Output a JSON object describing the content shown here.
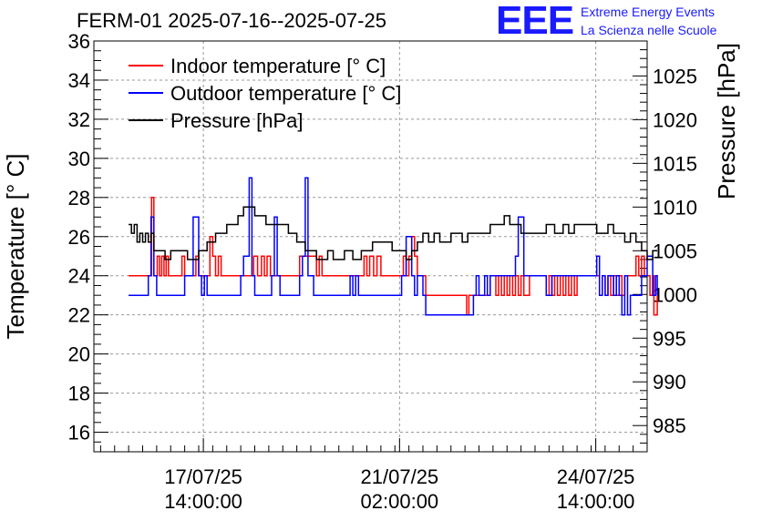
{
  "header": {
    "title": "FERM-01 2025-07-16--2025-07-25",
    "logo_text": "EEE",
    "logo_line1": "Extreme Energy Events",
    "logo_line2": "La Scienza nelle Scuole",
    "logo_color": "#1a1aff"
  },
  "chart_data": {
    "type": "line",
    "title": "FERM-01 2025-07-16--2025-07-25",
    "ylabel": "Temperature [° C]",
    "ylabel_right": "Pressure [hPa]",
    "ylim": [
      15,
      36
    ],
    "ylim_right": [
      982,
      1029
    ],
    "y_ticks": [
      16,
      18,
      20,
      22,
      24,
      26,
      28,
      30,
      32,
      34,
      36
    ],
    "y_ticks_right": [
      985,
      990,
      995,
      1000,
      1005,
      1010,
      1015,
      1020,
      1025
    ],
    "x_unit": "days since 2025-07-16 00:00",
    "xlim": [
      -0.37,
      9.5
    ],
    "x_ticks": [
      {
        "x": 1.583,
        "line1": "17/07/25",
        "line2": "14:00:00"
      },
      {
        "x": 5.083,
        "line1": "21/07/25",
        "line2": "02:00:00"
      },
      {
        "x": 8.583,
        "line1": "24/07/25",
        "line2": "14:00:00"
      }
    ],
    "grid": true,
    "legend_position": "top-left",
    "series": [
      {
        "name": "Indoor temperature [° C]",
        "axis": "left",
        "color": "#ff0000",
        "x": [
          0.25,
          0.6,
          0.66,
          0.7,
          0.76,
          0.8,
          0.84,
          0.88,
          0.92,
          0.96,
          1.0,
          1.05,
          1.1,
          1.15,
          1.2,
          1.25,
          1.3,
          1.4,
          1.45,
          1.5,
          1.55,
          1.62,
          1.7,
          1.75,
          1.8,
          1.85,
          1.9,
          2.0,
          2.1,
          2.2,
          2.4,
          2.48,
          2.55,
          2.62,
          2.67,
          2.72,
          2.78,
          2.85,
          2.95,
          3.1,
          3.2,
          3.3,
          3.45,
          3.5,
          3.55,
          3.6,
          3.65,
          3.7,
          3.8,
          4.0,
          4.1,
          4.4,
          4.45,
          4.5,
          4.55,
          4.62,
          4.68,
          4.75,
          4.85,
          5.0,
          5.1,
          5.15,
          5.2,
          5.25,
          5.3,
          5.35,
          5.4,
          5.5,
          5.55,
          5.6,
          5.65,
          5.7,
          5.8,
          6.2,
          6.28,
          6.32,
          6.4,
          6.5,
          6.6,
          6.7,
          6.8,
          6.85,
          6.9,
          6.95,
          7.0,
          7.05,
          7.1,
          7.15,
          7.2,
          7.25,
          7.3,
          7.4,
          7.6,
          7.7,
          7.75,
          7.8,
          7.85,
          7.9,
          7.95,
          8.0,
          8.05,
          8.1,
          8.15,
          8.2,
          8.25,
          8.3,
          8.4,
          8.5,
          8.6,
          8.65,
          8.7,
          8.75,
          8.8,
          8.85,
          8.9,
          8.95,
          9.0,
          9.05,
          9.1,
          9.2,
          9.3,
          9.35,
          9.4,
          9.45,
          9.5,
          9.55,
          9.6,
          9.62,
          9.68
        ],
        "y": [
          24,
          24,
          28,
          24,
          25,
          24,
          25,
          24,
          25,
          24,
          24,
          24,
          24,
          24,
          25,
          24,
          24,
          24,
          25,
          24,
          24,
          24,
          26,
          25,
          24,
          25,
          24,
          24,
          24,
          24,
          24,
          25,
          24,
          25,
          24,
          25,
          24,
          24,
          24,
          24,
          24,
          25,
          25,
          25,
          25,
          24,
          25,
          24,
          24,
          24,
          24,
          24,
          25,
          24,
          25,
          24,
          25,
          24,
          24,
          24,
          24,
          25,
          24,
          25,
          26,
          25,
          24,
          24,
          23,
          23,
          23,
          23,
          23,
          23,
          22,
          23,
          23,
          23,
          23,
          24,
          23,
          24,
          23,
          24,
          23,
          24,
          23,
          24,
          23,
          24,
          23,
          24,
          24,
          23,
          24,
          23,
          24,
          23,
          24,
          23,
          24,
          23,
          24,
          23,
          24,
          24,
          24,
          24,
          24,
          23,
          24,
          23,
          24,
          23,
          24,
          23,
          24,
          23,
          24,
          24,
          25,
          24,
          25,
          24,
          24,
          23,
          24,
          22,
          23
        ]
      },
      {
        "name": "Outdoor temperature [° C]",
        "axis": "left",
        "color": "#0000ff",
        "x": [
          0.25,
          0.55,
          0.6,
          0.65,
          0.7,
          0.75,
          0.8,
          0.85,
          1.0,
          1.1,
          1.2,
          1.25,
          1.4,
          1.5,
          1.55,
          1.6,
          1.65,
          1.85,
          2.0,
          2.1,
          2.2,
          2.25,
          2.3,
          2.4,
          2.45,
          2.5,
          2.6,
          2.75,
          2.8,
          2.85,
          2.9,
          2.95,
          3.05,
          3.2,
          3.3,
          3.35,
          3.4,
          3.45,
          3.55,
          3.9,
          4.0,
          4.15,
          4.2,
          4.25,
          4.3,
          4.35,
          4.5,
          4.65,
          4.75,
          4.85,
          5.0,
          5.12,
          5.2,
          5.3,
          5.35,
          5.4,
          5.5,
          5.55,
          6.0,
          6.3,
          6.4,
          6.45,
          6.5,
          6.6,
          6.65,
          6.7,
          6.8,
          6.9,
          7.0,
          7.1,
          7.15,
          7.2,
          7.3,
          7.4,
          7.5,
          7.6,
          7.7,
          7.8,
          7.9,
          8.0,
          8.2,
          8.5,
          8.6,
          8.65,
          8.7,
          8.75,
          8.8,
          8.85,
          8.9,
          8.95,
          9.0,
          9.05,
          9.1,
          9.15,
          9.2,
          9.25,
          9.3,
          9.35,
          9.4,
          9.5,
          9.6,
          9.65,
          9.68
        ],
        "y": [
          23,
          23,
          24,
          27,
          24,
          23,
          23,
          23,
          23,
          23,
          23,
          24,
          27,
          24,
          23,
          24,
          23,
          23,
          23,
          23,
          23,
          24,
          25,
          29,
          24,
          23,
          23,
          23,
          24,
          27,
          24,
          23,
          23,
          23,
          24,
          25,
          29,
          24,
          23,
          23,
          23,
          23,
          24,
          23,
          24,
          23,
          23,
          23,
          23,
          23,
          23,
          24,
          26,
          24,
          23,
          24,
          23,
          22,
          22,
          22,
          23,
          24,
          23,
          24,
          23,
          24,
          24,
          24,
          24,
          24,
          25,
          27,
          24,
          24,
          24,
          24,
          23,
          24,
          24,
          24,
          24,
          24,
          25,
          23,
          24,
          23,
          24,
          24,
          23,
          24,
          23,
          22,
          24,
          22,
          23,
          23,
          23,
          23,
          24,
          25,
          23,
          24,
          23
        ]
      },
      {
        "name": "Pressure [hPa]",
        "axis": "right",
        "color": "#000000",
        "x": [
          0.25,
          0.3,
          0.35,
          0.4,
          0.45,
          0.5,
          0.55,
          0.6,
          0.65,
          0.7,
          0.8,
          0.9,
          1.0,
          1.1,
          1.2,
          1.3,
          1.5,
          1.65,
          1.8,
          2.0,
          2.1,
          2.2,
          2.3,
          2.5,
          2.7,
          2.85,
          2.95,
          3.1,
          3.25,
          3.4,
          3.6,
          3.8,
          3.9,
          4.1,
          4.25,
          4.4,
          4.6,
          4.8,
          4.95,
          5.1,
          5.2,
          5.3,
          5.4,
          5.5,
          5.6,
          5.7,
          5.8,
          6.0,
          6.1,
          6.2,
          6.3,
          6.5,
          6.7,
          6.85,
          6.95,
          7.05,
          7.15,
          7.25,
          7.4,
          7.55,
          7.7,
          7.85,
          8.0,
          8.1,
          8.2,
          8.4,
          8.6,
          8.8,
          8.9,
          9.0,
          9.1,
          9.2,
          9.3,
          9.4,
          9.5,
          9.6,
          9.68
        ],
        "y": [
          1008,
          1007,
          1008,
          1006,
          1007,
          1006,
          1007,
          1006,
          1007,
          1005,
          1005,
          1004,
          1005,
          1005,
          1005,
          1004,
          1005,
          1006,
          1007,
          1008,
          1008,
          1009,
          1010,
          1009,
          1008,
          1008,
          1008,
          1007,
          1006,
          1005,
          1004,
          1005,
          1004,
          1005,
          1004,
          1005,
          1006,
          1006,
          1005,
          1005,
          1004,
          1005,
          1006,
          1007,
          1006,
          1007,
          1006,
          1007,
          1007,
          1006,
          1007,
          1007,
          1008,
          1008,
          1009,
          1008,
          1008,
          1007,
          1007,
          1007,
          1008,
          1007,
          1008,
          1007,
          1008,
          1008,
          1007,
          1008,
          1007,
          1007,
          1006,
          1007,
          1006,
          1005,
          1004,
          1005,
          1005
        ]
      }
    ]
  }
}
